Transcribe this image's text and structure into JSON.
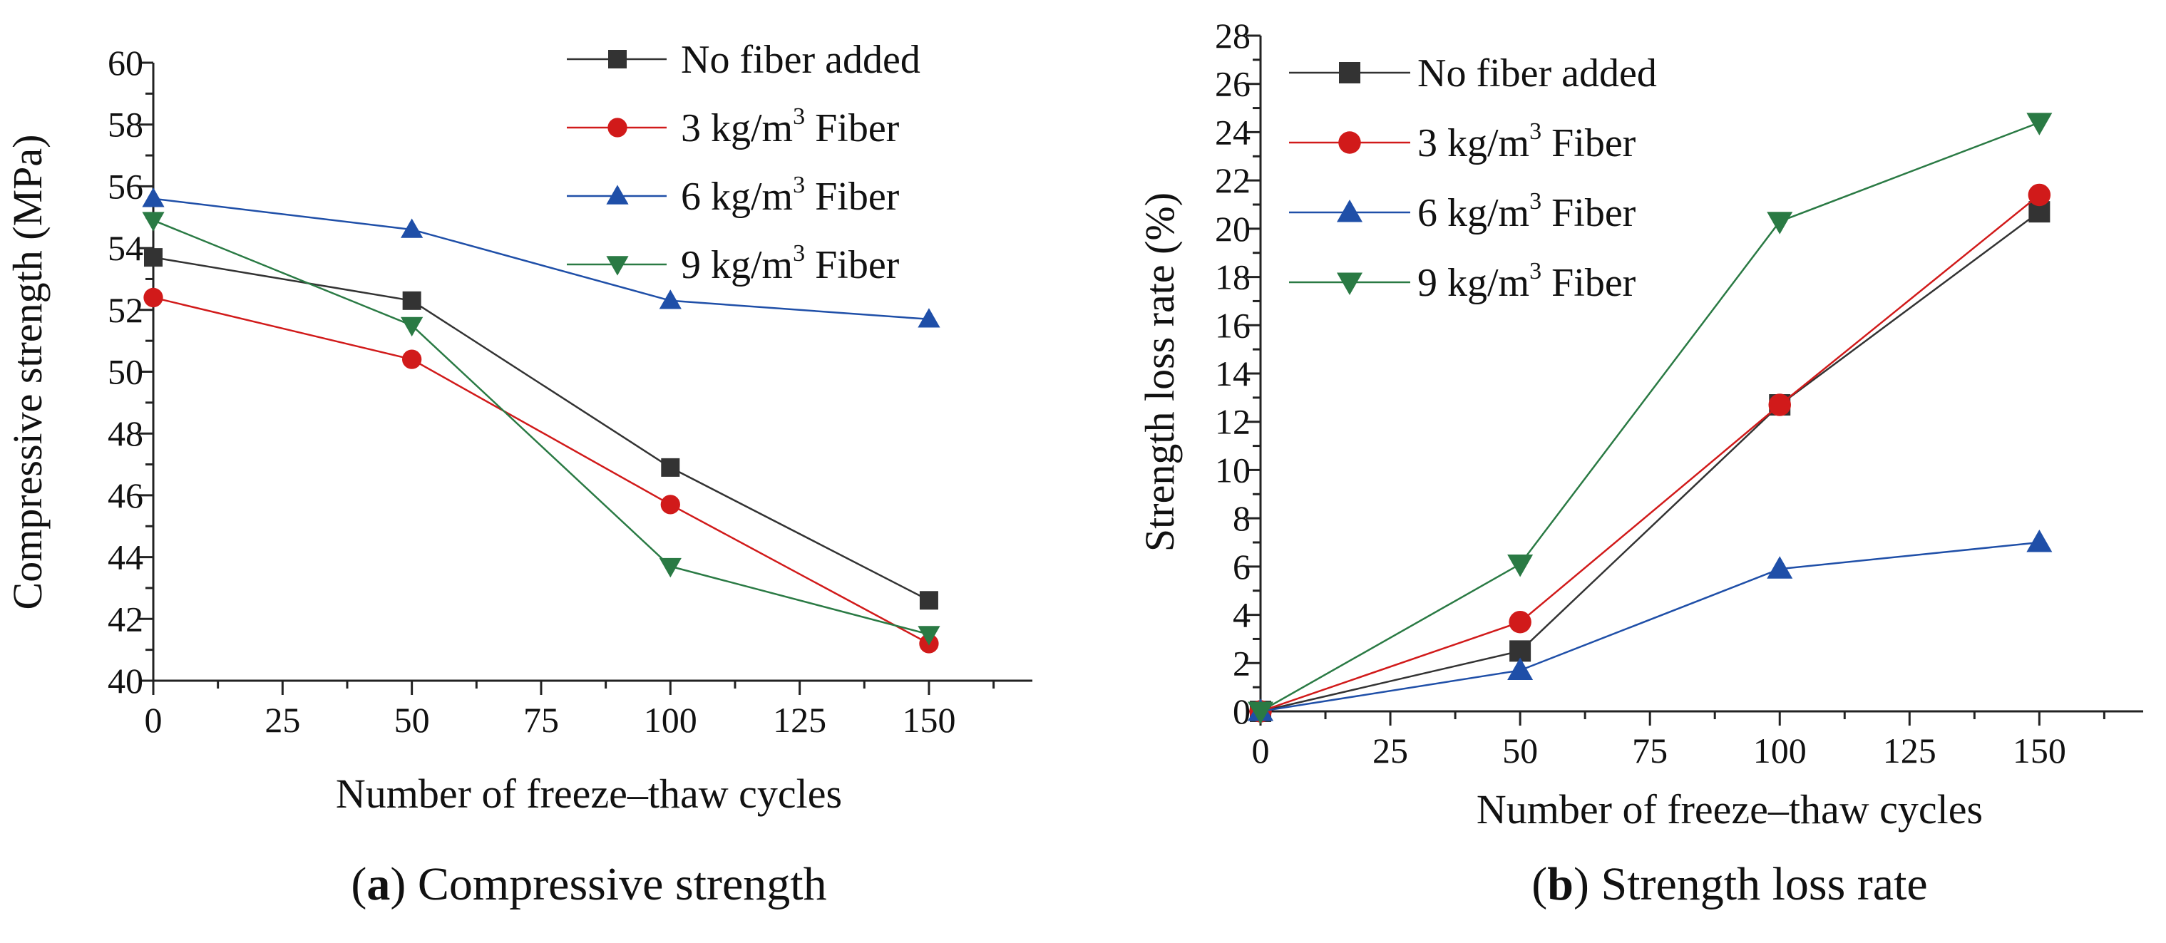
{
  "chart_data": [
    {
      "type": "line",
      "panel_id": "a",
      "caption": {
        "letter": "a",
        "text": " Compressive strength"
      },
      "xlabel": "Number of freeze–thaw cycles",
      "ylabel": "Compressive strength (MPa)",
      "xlim": [
        0,
        170
      ],
      "ylim": [
        40,
        60
      ],
      "xticks": [
        0,
        25,
        50,
        75,
        100,
        125,
        150
      ],
      "yticks": [
        40,
        42,
        44,
        46,
        48,
        50,
        52,
        54,
        56,
        58,
        60
      ],
      "grid": false,
      "legend_position": "top-right",
      "x": [
        0,
        50,
        100,
        150
      ],
      "series": [
        {
          "name": "No fiber added",
          "name_main": "No fiber added",
          "name_sup": "",
          "name_tail": "",
          "marker": "square",
          "color": "#333333",
          "values": [
            53.7,
            52.3,
            46.9,
            42.6
          ]
        },
        {
          "name": "3 kg/m3 Fiber",
          "name_main": "3 kg/m",
          "name_sup": "3",
          "name_tail": " Fiber",
          "marker": "circle",
          "color": "#d11a1a",
          "values": [
            52.4,
            50.4,
            45.7,
            41.2
          ]
        },
        {
          "name": "6 kg/m3 Fiber",
          "name_main": "6 kg/m",
          "name_sup": "3",
          "name_tail": " Fiber",
          "marker": "triangle-up",
          "color": "#1f4fa8",
          "values": [
            55.6,
            54.6,
            52.3,
            51.7
          ]
        },
        {
          "name": "9 kg/m3 Fiber",
          "name_main": "9 kg/m",
          "name_sup": "3",
          "name_tail": " Fiber",
          "marker": "triangle-down",
          "color": "#2a7a44",
          "values": [
            54.9,
            51.5,
            43.7,
            41.5
          ]
        }
      ]
    },
    {
      "type": "line",
      "panel_id": "b",
      "caption": {
        "letter": "b",
        "text": " Strength loss rate"
      },
      "xlabel": "Number of freeze–thaw cycles",
      "ylabel": "Strength loss rate (%)",
      "xlim": [
        0,
        170
      ],
      "ylim": [
        0,
        28
      ],
      "xticks": [
        0,
        25,
        50,
        75,
        100,
        125,
        150
      ],
      "yticks": [
        0,
        2,
        4,
        6,
        8,
        10,
        12,
        14,
        16,
        18,
        20,
        22,
        24,
        26,
        28
      ],
      "grid": false,
      "legend_position": "top-left",
      "x": [
        0,
        50,
        100,
        150
      ],
      "series": [
        {
          "name": "No fiber added",
          "name_main": "No fiber added",
          "name_sup": "",
          "name_tail": "",
          "marker": "square",
          "color": "#333333",
          "values": [
            0,
            2.5,
            12.7,
            20.7
          ]
        },
        {
          "name": "3 kg/m3 Fiber",
          "name_main": "3 kg/m",
          "name_sup": "3",
          "name_tail": " Fiber",
          "marker": "circle",
          "color": "#d11a1a",
          "values": [
            0,
            3.7,
            12.7,
            21.4
          ]
        },
        {
          "name": "6 kg/m3 Fiber",
          "name_main": "6 kg/m",
          "name_sup": "3",
          "name_tail": " Fiber",
          "marker": "triangle-up",
          "color": "#1f4fa8",
          "values": [
            0,
            1.7,
            5.9,
            7.0
          ]
        },
        {
          "name": "9 kg/m3 Fiber",
          "name_main": "9 kg/m",
          "name_sup": "3",
          "name_tail": " Fiber",
          "marker": "triangle-down",
          "color": "#2a7a44",
          "values": [
            0,
            6.1,
            20.3,
            24.4
          ]
        }
      ]
    }
  ]
}
